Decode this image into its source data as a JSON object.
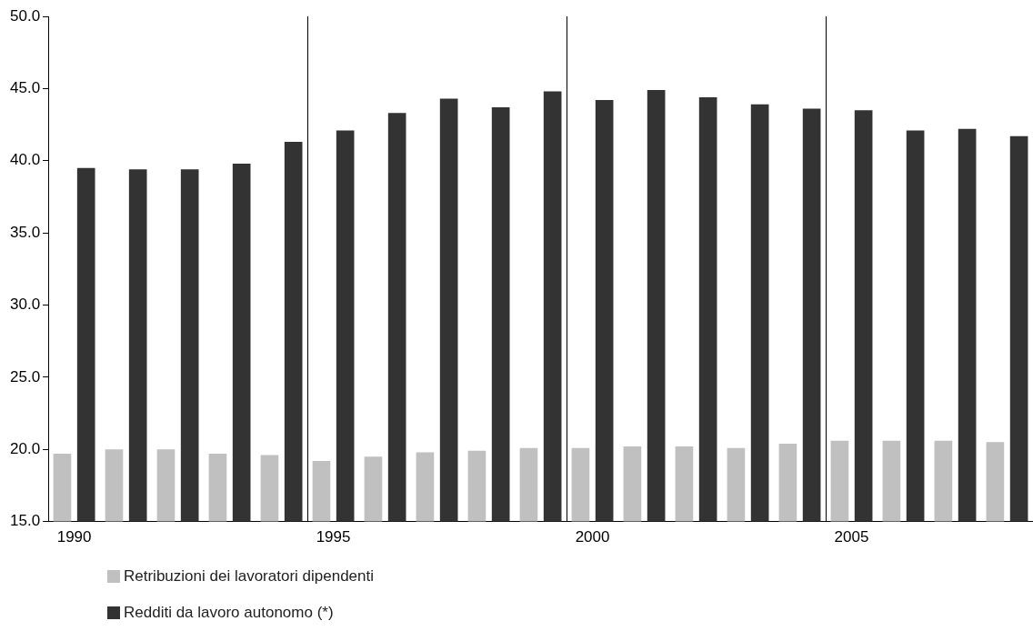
{
  "chart_data": {
    "type": "bar",
    "categories": [
      "1990",
      null,
      null,
      null,
      null,
      "1995",
      null,
      null,
      null,
      null,
      "2000",
      null,
      null,
      null,
      null,
      "2005",
      null,
      null,
      null
    ],
    "series": [
      {
        "name": "Retribuzioni dei lavoratori dipendenti",
        "color": "#c0c0c0",
        "values": [
          19.7,
          20.0,
          20.0,
          19.7,
          19.6,
          19.2,
          19.5,
          19.8,
          19.9,
          20.1,
          20.1,
          20.2,
          20.2,
          20.1,
          20.4,
          20.6,
          20.6,
          20.6,
          20.5
        ]
      },
      {
        "name": "Redditi da lavoro autonomo (*)",
        "color": "#333333",
        "values": [
          39.5,
          39.4,
          39.4,
          39.8,
          41.3,
          42.1,
          43.3,
          44.3,
          43.7,
          44.8,
          44.2,
          44.9,
          44.4,
          43.9,
          43.6,
          43.5,
          42.1,
          42.2,
          41.7
        ]
      }
    ],
    "ylim": [
      15,
      50
    ],
    "yticks": [
      {
        "value": 15,
        "label": "15.0"
      },
      {
        "value": 20,
        "label": "20.0"
      },
      {
        "value": 25,
        "label": "25.0"
      },
      {
        "value": 30,
        "label": "30.0"
      },
      {
        "value": 35,
        "label": "35.0"
      },
      {
        "value": 40,
        "label": "40.0"
      },
      {
        "value": 45,
        "label": "45.0"
      },
      {
        "value": 50,
        "label": "50.0"
      }
    ],
    "grid": "x",
    "legend": "bottom"
  }
}
